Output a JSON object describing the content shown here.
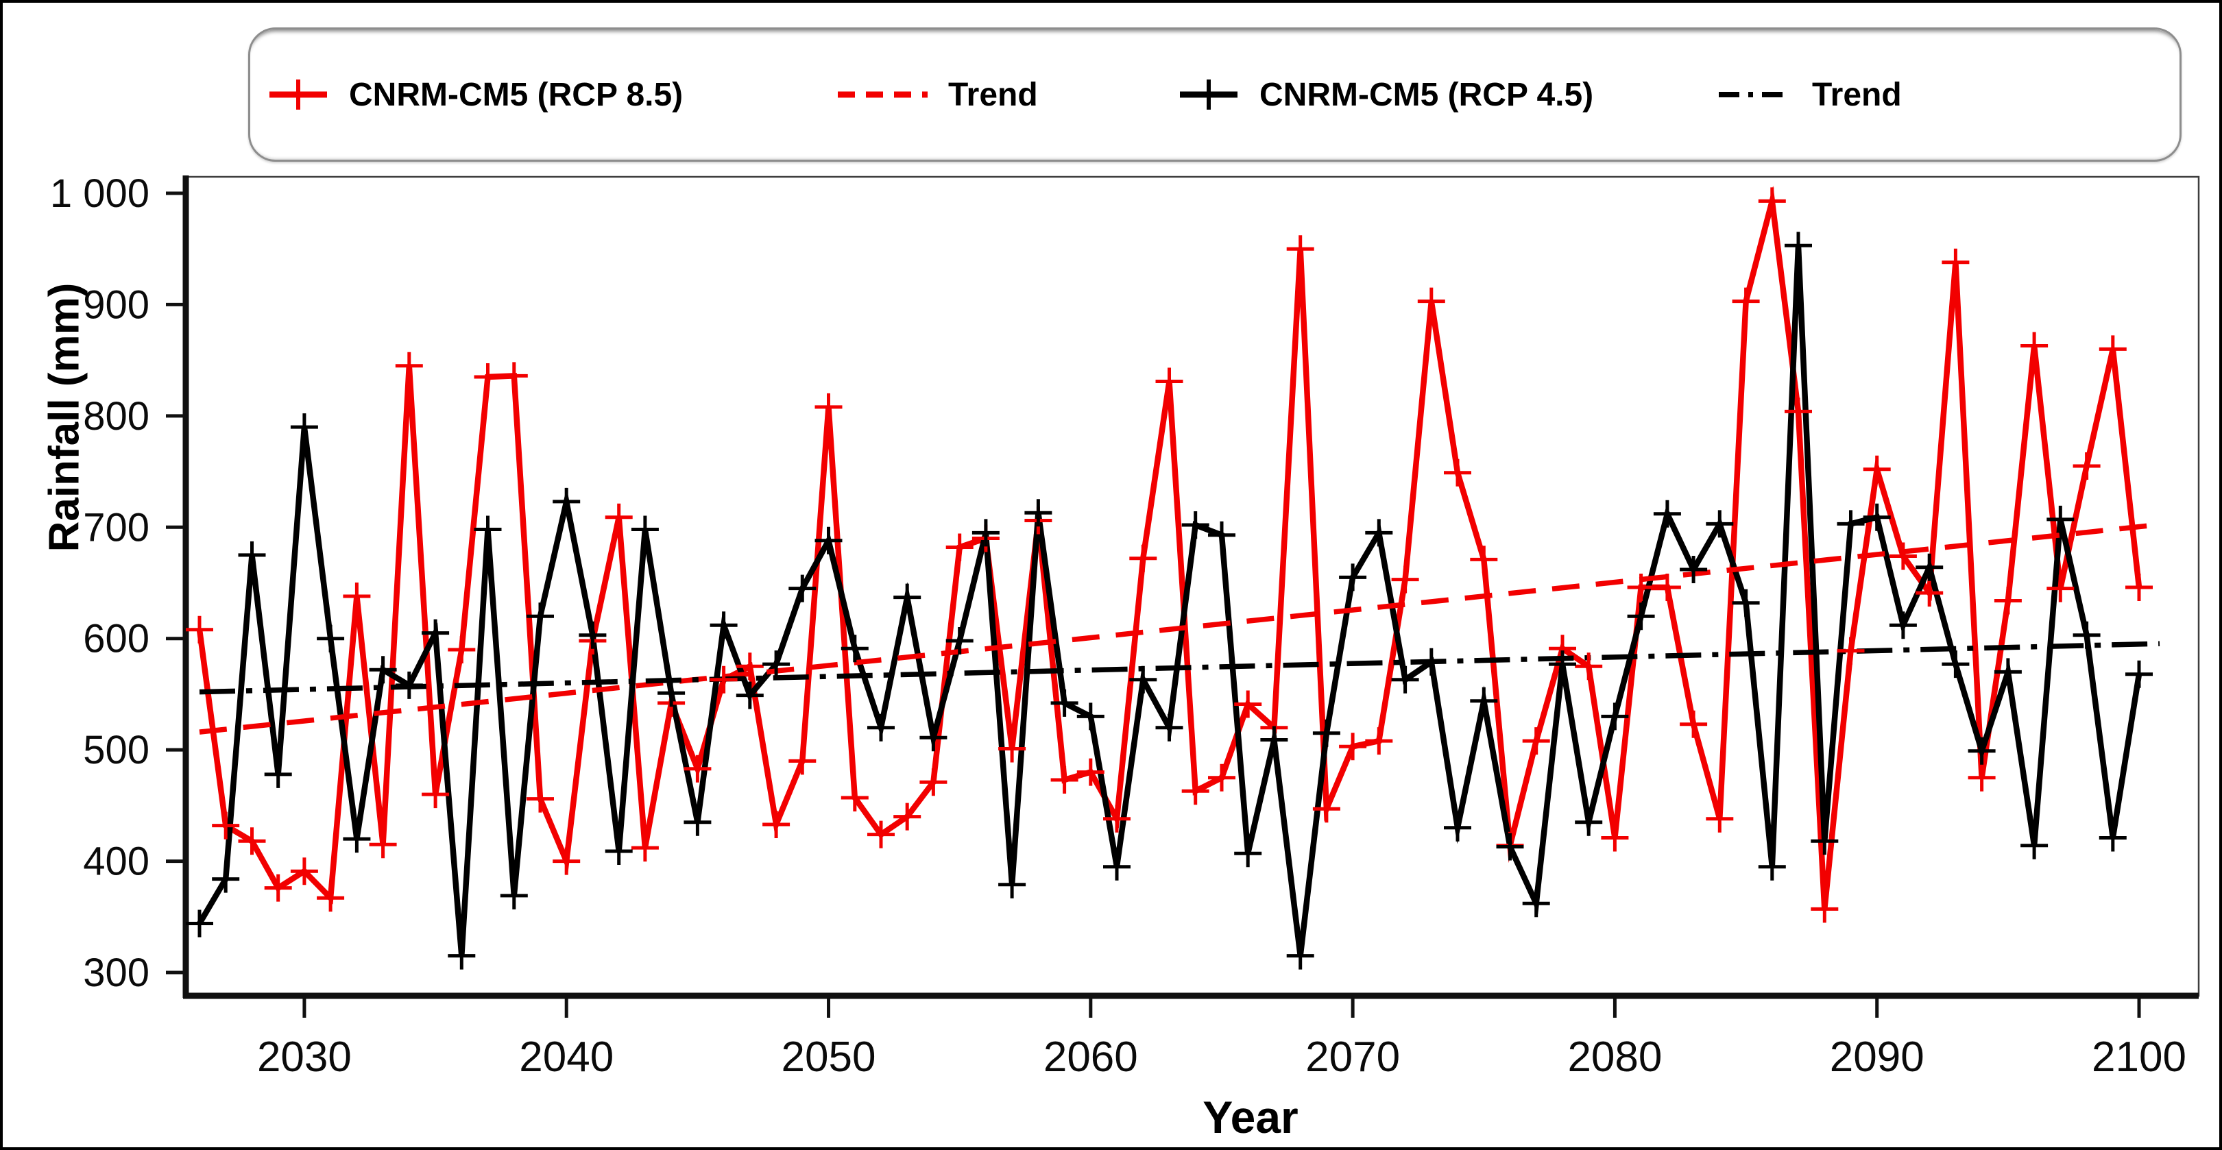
{
  "chart_data": {
    "type": "line",
    "title": "",
    "xlabel": "Year",
    "ylabel": "Rainfall (mm)",
    "x_axis": {
      "tick_years": [
        2030,
        2040,
        2050,
        2060,
        2070,
        2080,
        2090,
        2100
      ],
      "range": [
        2026,
        2100
      ],
      "grid": false
    },
    "y_axis": {
      "tick_values": [
        1000,
        900,
        800,
        700,
        600,
        500,
        400,
        300
      ],
      "tick_labels": [
        "1 000",
        "900",
        "800",
        "700",
        "600",
        "500",
        "400",
        "300"
      ],
      "range": [
        300,
        1000
      ],
      "grid": false
    },
    "years": [
      2026,
      2027,
      2028,
      2029,
      2030,
      2031,
      2032,
      2033,
      2034,
      2035,
      2036,
      2037,
      2038,
      2039,
      2040,
      2041,
      2042,
      2043,
      2044,
      2045,
      2046,
      2047,
      2048,
      2049,
      2050,
      2051,
      2052,
      2053,
      2054,
      2055,
      2056,
      2057,
      2058,
      2059,
      2060,
      2061,
      2062,
      2063,
      2064,
      2065,
      2066,
      2067,
      2068,
      2069,
      2070,
      2071,
      2072,
      2073,
      2074,
      2075,
      2076,
      2077,
      2078,
      2079,
      2080,
      2081,
      2082,
      2083,
      2084,
      2085,
      2086,
      2087,
      2088,
      2089,
      2090,
      2091,
      2092,
      2093,
      2094,
      2095,
      2096,
      2097,
      2098,
      2099,
      2100
    ],
    "series": [
      {
        "name": "CNRM-CM5 (RCP 8.5)",
        "color": "#f20000",
        "style": "solid-plus",
        "values": [
          608,
          432,
          418,
          376,
          391,
          367,
          638,
          415,
          845,
          460,
          590,
          835,
          836,
          456,
          400,
          598,
          709,
          412,
          542,
          483,
          563,
          575,
          433,
          490,
          808,
          457,
          424,
          440,
          471,
          682,
          690,
          501,
          706,
          473,
          480,
          438,
          672,
          831,
          463,
          475,
          541,
          520,
          950,
          447,
          503,
          508,
          653,
          903,
          749,
          671,
          414,
          508,
          591,
          575,
          421,
          646,
          646,
          523,
          438,
          903,
          993,
          804,
          357,
          589,
          752,
          674,
          641,
          938,
          475,
          634,
          863,
          645,
          755,
          860,
          646
        ]
      },
      {
        "name": "CNRM-CM5 (RCP 4.5)",
        "color": "#000000",
        "style": "solid-plus",
        "values": [
          344,
          384,
          675,
          478,
          790,
          600,
          420,
          572,
          558,
          605,
          315,
          698,
          369,
          620,
          723,
          603,
          409,
          698,
          551,
          435,
          612,
          549,
          577,
          645,
          688,
          591,
          520,
          637,
          511,
          598,
          695,
          379,
          713,
          542,
          530,
          395,
          563,
          520,
          702,
          693,
          407,
          509,
          315,
          515,
          655,
          695,
          563,
          579,
          430,
          544,
          413,
          362,
          577,
          435,
          530,
          620,
          712,
          662,
          703,
          632,
          395,
          953,
          418,
          703,
          709,
          612,
          664,
          577,
          499,
          570,
          414,
          707,
          603,
          421,
          568
        ]
      }
    ],
    "trends": [
      {
        "name": "Trend",
        "of_series": "CNRM-CM5 (RCP 8.5)",
        "color": "#f20000",
        "style": "dashed",
        "start": {
          "year": 2026,
          "value": 516
        },
        "end": {
          "year": 2100,
          "value": 703
        }
      },
      {
        "name": "Trend",
        "of_series": "CNRM-CM5 (RCP 4.5)",
        "color": "#000000",
        "style": "dashdot",
        "start": {
          "year": 2026,
          "value": 552
        },
        "end": {
          "year": 2100,
          "value": 596
        }
      }
    ],
    "legend": {
      "position": "top",
      "entries": [
        {
          "label": "CNRM-CM5 (RCP 8.5)",
          "swatch": "red-solid-plus"
        },
        {
          "label": "Trend",
          "swatch": "red-dashed"
        },
        {
          "label": "CNRM-CM5 (RCP 4.5)",
          "swatch": "black-solid-plus"
        },
        {
          "label": "Trend",
          "swatch": "black-dashdot"
        }
      ]
    }
  }
}
